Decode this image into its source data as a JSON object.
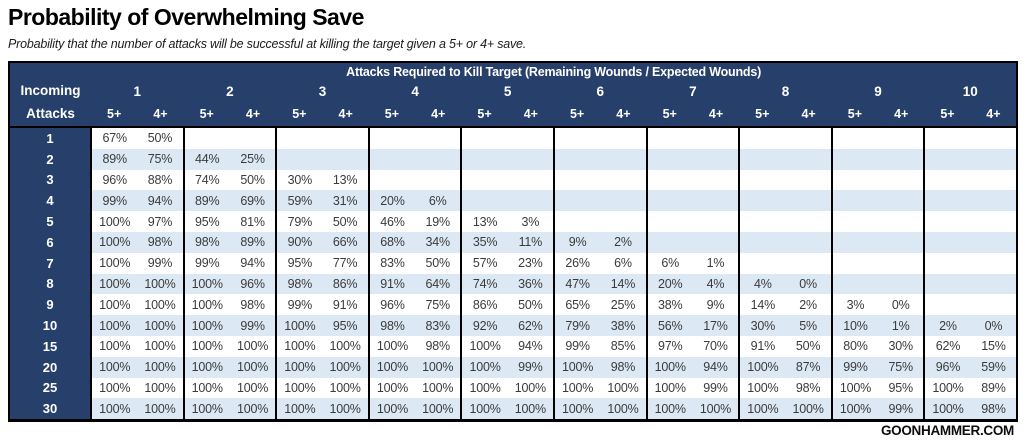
{
  "page": {
    "title": "Probability of Overwhelming Save",
    "subtitle": "Probability that the number of attacks will be successful at killing the target given a 5+ or 4+ save.",
    "footer": "GOONHAMMER.COM"
  },
  "colors": {
    "header_navy": "#27406b",
    "stripe_blue": "#dce8f4",
    "border_black": "#000000",
    "body_text": "#3b3b3b"
  },
  "chart_data": {
    "type": "table",
    "title": "Probability of Overwhelming Save",
    "subtitle": "Probability that the number of attacks will be successful at killing the target given a 5+ or 4+ save.",
    "span_header": "Attacks Required to Kill Target (Remaining Wounds / Expected Wounds)",
    "row_header_line1": "Incoming",
    "row_header_line2": "Attacks",
    "groups": [
      "1",
      "2",
      "3",
      "4",
      "5",
      "6",
      "7",
      "8",
      "9",
      "10"
    ],
    "sub_headers": [
      "5+",
      "4+"
    ],
    "rows": [
      {
        "label": "1",
        "values": [
          "67%",
          "50%",
          "",
          "",
          "",
          "",
          "",
          "",
          "",
          "",
          "",
          "",
          "",
          "",
          "",
          "",
          "",
          "",
          "",
          ""
        ]
      },
      {
        "label": "2",
        "values": [
          "89%",
          "75%",
          "44%",
          "25%",
          "",
          "",
          "",
          "",
          "",
          "",
          "",
          "",
          "",
          "",
          "",
          "",
          "",
          "",
          "",
          ""
        ]
      },
      {
        "label": "3",
        "values": [
          "96%",
          "88%",
          "74%",
          "50%",
          "30%",
          "13%",
          "",
          "",
          "",
          "",
          "",
          "",
          "",
          "",
          "",
          "",
          "",
          "",
          "",
          ""
        ]
      },
      {
        "label": "4",
        "values": [
          "99%",
          "94%",
          "89%",
          "69%",
          "59%",
          "31%",
          "20%",
          "6%",
          "",
          "",
          "",
          "",
          "",
          "",
          "",
          "",
          "",
          "",
          "",
          ""
        ]
      },
      {
        "label": "5",
        "values": [
          "100%",
          "97%",
          "95%",
          "81%",
          "79%",
          "50%",
          "46%",
          "19%",
          "13%",
          "3%",
          "",
          "",
          "",
          "",
          "",
          "",
          "",
          "",
          "",
          ""
        ]
      },
      {
        "label": "6",
        "values": [
          "100%",
          "98%",
          "98%",
          "89%",
          "90%",
          "66%",
          "68%",
          "34%",
          "35%",
          "11%",
          "9%",
          "2%",
          "",
          "",
          "",
          "",
          "",
          "",
          "",
          ""
        ]
      },
      {
        "label": "7",
        "values": [
          "100%",
          "99%",
          "99%",
          "94%",
          "95%",
          "77%",
          "83%",
          "50%",
          "57%",
          "23%",
          "26%",
          "6%",
          "6%",
          "1%",
          "",
          "",
          "",
          "",
          "",
          ""
        ]
      },
      {
        "label": "8",
        "values": [
          "100%",
          "100%",
          "100%",
          "96%",
          "98%",
          "86%",
          "91%",
          "64%",
          "74%",
          "36%",
          "47%",
          "14%",
          "20%",
          "4%",
          "4%",
          "0%",
          "",
          "",
          "",
          ""
        ]
      },
      {
        "label": "9",
        "values": [
          "100%",
          "100%",
          "100%",
          "98%",
          "99%",
          "91%",
          "96%",
          "75%",
          "86%",
          "50%",
          "65%",
          "25%",
          "38%",
          "9%",
          "14%",
          "2%",
          "3%",
          "0%",
          "",
          ""
        ]
      },
      {
        "label": "10",
        "values": [
          "100%",
          "100%",
          "100%",
          "99%",
          "100%",
          "95%",
          "98%",
          "83%",
          "92%",
          "62%",
          "79%",
          "38%",
          "56%",
          "17%",
          "30%",
          "5%",
          "10%",
          "1%",
          "2%",
          "0%"
        ]
      },
      {
        "label": "15",
        "values": [
          "100%",
          "100%",
          "100%",
          "100%",
          "100%",
          "100%",
          "100%",
          "98%",
          "100%",
          "94%",
          "99%",
          "85%",
          "97%",
          "70%",
          "91%",
          "50%",
          "80%",
          "30%",
          "62%",
          "15%"
        ]
      },
      {
        "label": "20",
        "values": [
          "100%",
          "100%",
          "100%",
          "100%",
          "100%",
          "100%",
          "100%",
          "100%",
          "100%",
          "99%",
          "100%",
          "98%",
          "100%",
          "94%",
          "100%",
          "87%",
          "99%",
          "75%",
          "96%",
          "59%"
        ]
      },
      {
        "label": "25",
        "values": [
          "100%",
          "100%",
          "100%",
          "100%",
          "100%",
          "100%",
          "100%",
          "100%",
          "100%",
          "100%",
          "100%",
          "100%",
          "100%",
          "99%",
          "100%",
          "98%",
          "100%",
          "95%",
          "100%",
          "89%"
        ]
      },
      {
        "label": "30",
        "values": [
          "100%",
          "100%",
          "100%",
          "100%",
          "100%",
          "100%",
          "100%",
          "100%",
          "100%",
          "100%",
          "100%",
          "100%",
          "100%",
          "100%",
          "100%",
          "100%",
          "100%",
          "99%",
          "100%",
          "98%"
        ]
      }
    ]
  }
}
